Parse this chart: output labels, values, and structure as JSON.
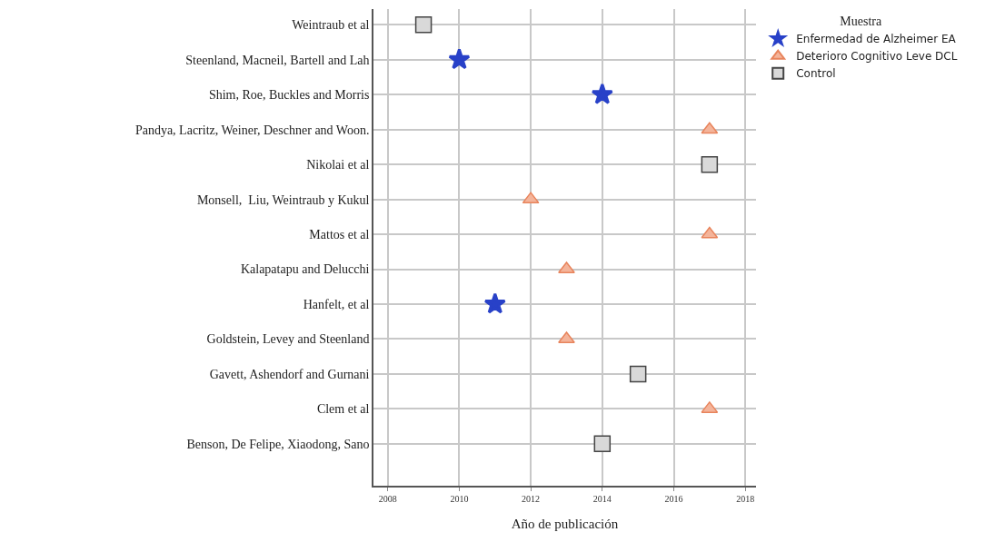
{
  "chart_data": {
    "type": "scatter",
    "orientation": "horizontal",
    "xlabel": "Año de publicación",
    "legend_title": "Muestra",
    "categories": [
      "Weintraub et al",
      "Steenland, Macneil, Bartell and Lah",
      "Shim, Roe, Buckles and Morris",
      "Pandya, Lacritz, Weiner, Deschner and Woon.",
      "Nikolai et al",
      "Monsell,  Liu, Weintraub y Kukul",
      "Mattos et al",
      "Kalapatapu and Delucchi",
      "Hanfelt, et al",
      "Goldstein, Levey and Steenland",
      "Gavett, Ashendorf and Gurnani",
      "Clem et al",
      "Benson, De Felipe, Xiaodong, Sano"
    ],
    "series": [
      {
        "name": "Enfermedad de Alzheimer EA",
        "color": "#2841c8",
        "marker": "star",
        "values": [
          null,
          2010,
          2014,
          null,
          null,
          null,
          null,
          null,
          2011,
          null,
          null,
          null,
          null
        ]
      },
      {
        "name": "Deterioro Cognitivo Leve DCL",
        "color": "#f4b49a",
        "marker": "triangle",
        "values": [
          null,
          null,
          null,
          2017,
          null,
          2012,
          2017,
          2013,
          null,
          2013,
          null,
          2017,
          null
        ]
      },
      {
        "name": "Control",
        "color": "#d9d9d9",
        "marker": "square",
        "values": [
          2009,
          null,
          null,
          null,
          2017,
          null,
          null,
          null,
          null,
          null,
          2015,
          null,
          2014
        ]
      }
    ],
    "xlim": [
      2007.6,
      2018.3
    ],
    "xticks": [
      2008,
      2010,
      2012,
      2014,
      2016,
      2018
    ],
    "grid": true,
    "legend": "top right"
  }
}
